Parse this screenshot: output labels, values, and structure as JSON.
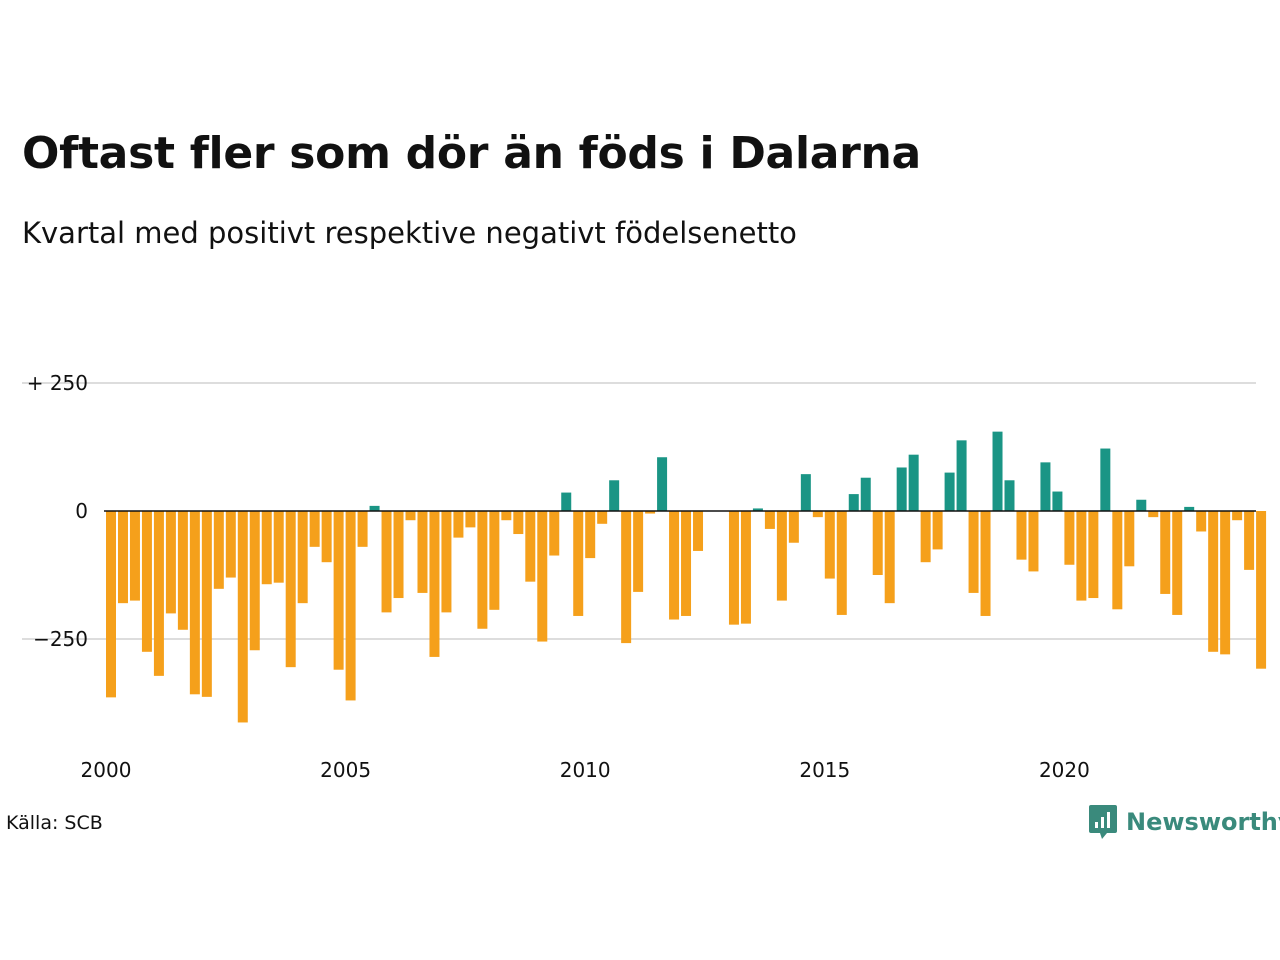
{
  "chart_data": {
    "type": "bar",
    "title": "Oftast fler som dör än föds i Dalarna",
    "subtitle": "Kvartal med positivt respektive negativt födelsenetto",
    "xlabel": "",
    "ylabel": "",
    "ylim": [
      -430,
      250
    ],
    "yticks": [
      {
        "value": 250,
        "label": "+ 250"
      },
      {
        "value": 0,
        "label": "0"
      },
      {
        "value": -250,
        "label": "−250"
      }
    ],
    "xticks": [
      "2000",
      "2005",
      "2010",
      "2015",
      "2020"
    ],
    "start_year": 2000,
    "quarters_per_year": 4,
    "grid": true,
    "colors": {
      "positive": "#1a9585",
      "negative": "#f5a01b",
      "grid": "#dddddd",
      "axis": "#111111"
    },
    "values": [
      -364,
      -180,
      -175,
      -275,
      -322,
      -200,
      -232,
      -358,
      -363,
      -152,
      -130,
      -413,
      -272,
      -143,
      -140,
      -305,
      -180,
      -70,
      -100,
      -310,
      -370,
      -70,
      10,
      -198,
      -170,
      -18,
      -160,
      -285,
      -198,
      -52,
      -32,
      -230,
      -193,
      -18,
      -45,
      -138,
      -255,
      -87,
      36,
      -205,
      -92,
      -25,
      60,
      -258,
      -158,
      -5,
      105,
      -212,
      -205,
      -78,
      0,
      0,
      -222,
      -220,
      5,
      -35,
      -175,
      -62,
      72,
      -12,
      -132,
      -203,
      33,
      65,
      -125,
      -180,
      85,
      110,
      -100,
      -75,
      75,
      138,
      -160,
      -205,
      155,
      60,
      -95,
      -118,
      95,
      38,
      -105,
      -175,
      -170,
      122,
      -192,
      -108,
      22,
      -12,
      -162,
      -203,
      8,
      -40,
      -275,
      -280,
      -18,
      -115,
      -308
    ]
  },
  "source": "Källa: SCB",
  "logo": {
    "text": "Newsworthy",
    "color": "#3a8a7c"
  }
}
